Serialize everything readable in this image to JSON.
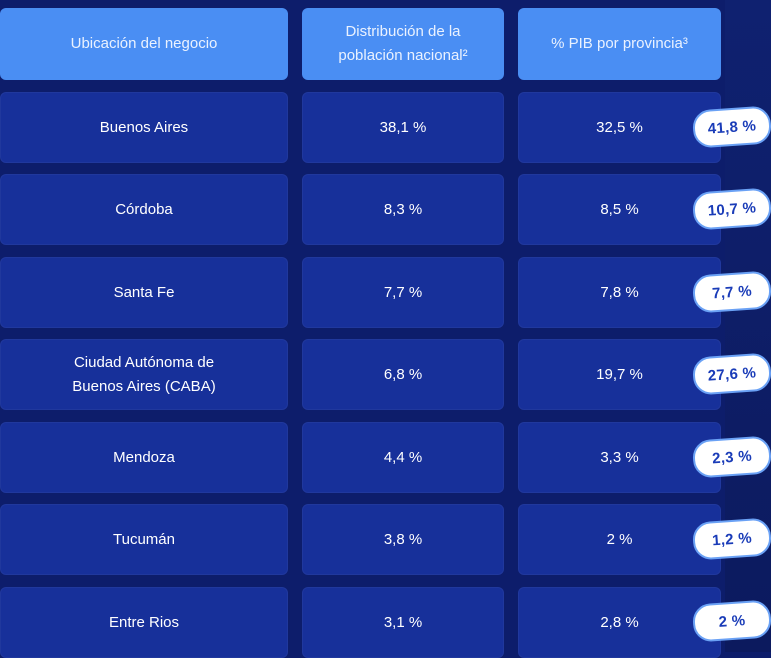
{
  "headers": {
    "location": "Ubicación del negocio",
    "population": "Distribución de la población nacional²",
    "gdp": "% PIB por provincia³"
  },
  "rows": [
    {
      "name": "Buenos Aires",
      "population": "38,1 %",
      "gdp": "32,5 %",
      "badge": "41,8 %"
    },
    {
      "name": "Córdoba",
      "population": "8,3 %",
      "gdp": "8,5 %",
      "badge": "10,7 %"
    },
    {
      "name": "Santa Fe",
      "population": "7,7 %",
      "gdp": "7,8 %",
      "badge": "7,7 %"
    },
    {
      "name": "Ciudad Autónoma de Buenos Aires (CABA)",
      "population": "6,8 %",
      "gdp": "19,7 %",
      "badge": "27,6 %"
    },
    {
      "name": "Mendoza",
      "population": "4,4 %",
      "gdp": "3,3 %",
      "badge": "2,3 %"
    },
    {
      "name": "Tucumán",
      "population": "3,8 %",
      "gdp": "2 %",
      "badge": "1,2 %"
    },
    {
      "name": "Entre Rios",
      "population": "3,1 %",
      "gdp": "2,8 %",
      "badge": "2 %"
    }
  ],
  "colors": {
    "background": "#0d1d6b",
    "header": "#4a8ef3",
    "cell": "#17309a",
    "badge_text": "#1a3cb8"
  }
}
